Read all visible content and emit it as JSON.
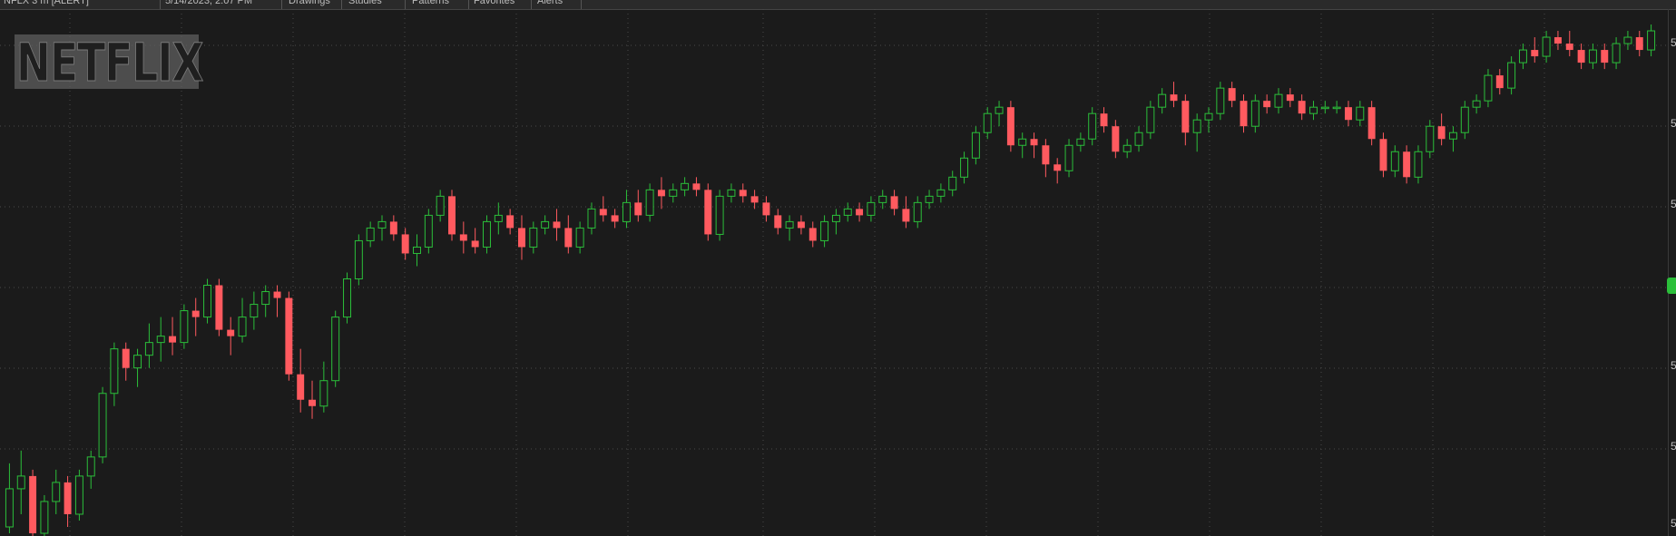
{
  "header": {
    "items": [
      {
        "label": "NFLX 3 m [ALERT]"
      },
      {
        "label": "5/14/2023, 2:07 PM"
      },
      {
        "label": "Drawings"
      },
      {
        "label": "Studies"
      },
      {
        "label": "Patterns"
      },
      {
        "label": "Favorites"
      },
      {
        "label": "Alerts"
      }
    ]
  },
  "logo": {
    "text": "NETFLIX"
  },
  "colors": {
    "background": "#1b1b1b",
    "up": "#2bbf3a",
    "down": "#ff5a5f",
    "grid": "#4a4a4a"
  },
  "chart_data": {
    "type": "candlestick",
    "title": "",
    "xlabel": "",
    "ylabel": "",
    "ylim": [
      1,
      9
    ],
    "y_tick_labels": [
      "5",
      "5",
      "5",
      "5",
      "5",
      "5"
    ],
    "grid": true,
    "x": [],
    "series": [
      {
        "ohlc": [
          [
            1.0,
            2.0,
            0.9,
            1.6
          ],
          [
            1.6,
            2.2,
            1.2,
            1.8
          ],
          [
            1.8,
            1.9,
            0.6,
            0.9
          ],
          [
            0.9,
            1.5,
            0.8,
            1.4
          ],
          [
            1.4,
            1.9,
            1.2,
            1.7
          ],
          [
            1.7,
            1.8,
            1.0,
            1.2
          ],
          [
            1.2,
            1.9,
            1.1,
            1.8
          ],
          [
            1.8,
            2.2,
            1.6,
            2.1
          ],
          [
            2.1,
            3.2,
            2.0,
            3.1
          ],
          [
            3.1,
            3.9,
            2.9,
            3.8
          ],
          [
            3.8,
            3.9,
            3.3,
            3.5
          ],
          [
            3.5,
            3.8,
            3.2,
            3.7
          ],
          [
            3.7,
            4.2,
            3.5,
            3.9
          ],
          [
            3.9,
            4.3,
            3.6,
            4.0
          ],
          [
            4.0,
            4.3,
            3.7,
            3.9
          ],
          [
            3.9,
            4.5,
            3.8,
            4.4
          ],
          [
            4.4,
            4.6,
            4.0,
            4.3
          ],
          [
            4.3,
            4.9,
            4.2,
            4.8
          ],
          [
            4.8,
            4.9,
            4.0,
            4.1
          ],
          [
            4.1,
            4.3,
            3.7,
            4.0
          ],
          [
            4.0,
            4.6,
            3.9,
            4.3
          ],
          [
            4.3,
            4.7,
            4.1,
            4.5
          ],
          [
            4.5,
            4.8,
            4.3,
            4.7
          ],
          [
            4.7,
            4.8,
            4.3,
            4.6
          ],
          [
            4.6,
            4.7,
            3.3,
            3.4
          ],
          [
            3.4,
            3.8,
            2.8,
            3.0
          ],
          [
            3.0,
            3.3,
            2.7,
            2.9
          ],
          [
            2.9,
            3.6,
            2.8,
            3.3
          ],
          [
            3.3,
            4.4,
            3.2,
            4.3
          ],
          [
            4.3,
            5.0,
            4.2,
            4.9
          ],
          [
            4.9,
            5.6,
            4.8,
            5.5
          ],
          [
            5.5,
            5.8,
            5.4,
            5.7
          ],
          [
            5.7,
            5.9,
            5.5,
            5.8
          ],
          [
            5.8,
            5.9,
            5.5,
            5.6
          ],
          [
            5.6,
            5.7,
            5.2,
            5.3
          ],
          [
            5.3,
            5.6,
            5.1,
            5.4
          ],
          [
            5.4,
            6.0,
            5.3,
            5.9
          ],
          [
            5.9,
            6.3,
            5.8,
            6.2
          ],
          [
            6.2,
            6.3,
            5.5,
            5.6
          ],
          [
            5.6,
            5.8,
            5.3,
            5.5
          ],
          [
            5.5,
            5.7,
            5.3,
            5.4
          ],
          [
            5.4,
            5.9,
            5.3,
            5.8
          ],
          [
            5.8,
            6.1,
            5.6,
            5.9
          ],
          [
            5.9,
            6.0,
            5.6,
            5.7
          ],
          [
            5.7,
            5.9,
            5.2,
            5.4
          ],
          [
            5.4,
            5.8,
            5.3,
            5.7
          ],
          [
            5.7,
            5.9,
            5.6,
            5.8
          ],
          [
            5.8,
            6.0,
            5.5,
            5.7
          ],
          [
            5.7,
            5.9,
            5.3,
            5.4
          ],
          [
            5.4,
            5.8,
            5.3,
            5.7
          ],
          [
            5.7,
            6.1,
            5.6,
            6.0
          ],
          [
            6.0,
            6.2,
            5.8,
            5.9
          ],
          [
            5.9,
            6.0,
            5.7,
            5.8
          ],
          [
            5.8,
            6.3,
            5.7,
            6.1
          ],
          [
            6.1,
            6.3,
            5.8,
            5.9
          ],
          [
            5.9,
            6.4,
            5.8,
            6.3
          ],
          [
            6.3,
            6.5,
            6.0,
            6.2
          ],
          [
            6.2,
            6.4,
            6.1,
            6.3
          ],
          [
            6.3,
            6.5,
            6.2,
            6.4
          ],
          [
            6.4,
            6.5,
            6.2,
            6.3
          ],
          [
            6.3,
            6.4,
            5.5,
            5.6
          ],
          [
            5.6,
            6.3,
            5.5,
            6.2
          ],
          [
            6.2,
            6.4,
            6.1,
            6.3
          ],
          [
            6.3,
            6.4,
            6.1,
            6.2
          ],
          [
            6.2,
            6.3,
            6.0,
            6.1
          ],
          [
            6.1,
            6.2,
            5.8,
            5.9
          ],
          [
            5.9,
            6.0,
            5.6,
            5.7
          ],
          [
            5.7,
            5.9,
            5.5,
            5.8
          ],
          [
            5.8,
            5.9,
            5.6,
            5.7
          ],
          [
            5.7,
            5.8,
            5.4,
            5.5
          ],
          [
            5.5,
            5.9,
            5.4,
            5.8
          ],
          [
            5.8,
            6.0,
            5.6,
            5.9
          ],
          [
            5.9,
            6.1,
            5.8,
            6.0
          ],
          [
            6.0,
            6.1,
            5.8,
            5.9
          ],
          [
            5.9,
            6.2,
            5.8,
            6.1
          ],
          [
            6.1,
            6.3,
            6.0,
            6.2
          ],
          [
            6.2,
            6.3,
            5.9,
            6.0
          ],
          [
            6.0,
            6.2,
            5.7,
            5.8
          ],
          [
            5.8,
            6.2,
            5.7,
            6.1
          ],
          [
            6.1,
            6.3,
            6.0,
            6.2
          ],
          [
            6.2,
            6.4,
            6.1,
            6.3
          ],
          [
            6.3,
            6.6,
            6.2,
            6.5
          ],
          [
            6.5,
            6.9,
            6.4,
            6.8
          ],
          [
            6.8,
            7.3,
            6.7,
            7.2
          ],
          [
            7.2,
            7.6,
            7.1,
            7.5
          ],
          [
            7.5,
            7.7,
            7.3,
            7.6
          ],
          [
            7.6,
            7.7,
            6.9,
            7.0
          ],
          [
            7.0,
            7.2,
            6.8,
            7.1
          ],
          [
            7.1,
            7.2,
            6.8,
            7.0
          ],
          [
            7.0,
            7.1,
            6.5,
            6.7
          ],
          [
            6.7,
            6.8,
            6.4,
            6.6
          ],
          [
            6.6,
            7.1,
            6.5,
            7.0
          ],
          [
            7.0,
            7.2,
            6.9,
            7.1
          ],
          [
            7.1,
            7.6,
            7.0,
            7.5
          ],
          [
            7.5,
            7.6,
            7.2,
            7.3
          ],
          [
            7.3,
            7.4,
            6.8,
            6.9
          ],
          [
            6.9,
            7.1,
            6.8,
            7.0
          ],
          [
            7.0,
            7.3,
            6.9,
            7.2
          ],
          [
            7.2,
            7.7,
            7.1,
            7.6
          ],
          [
            7.6,
            7.9,
            7.5,
            7.8
          ],
          [
            7.8,
            8.0,
            7.6,
            7.7
          ],
          [
            7.7,
            7.8,
            7.0,
            7.2
          ],
          [
            7.2,
            7.5,
            6.9,
            7.4
          ],
          [
            7.4,
            7.6,
            7.2,
            7.5
          ],
          [
            7.5,
            8.0,
            7.4,
            7.9
          ],
          [
            7.9,
            8.0,
            7.6,
            7.7
          ],
          [
            7.7,
            7.8,
            7.2,
            7.3
          ],
          [
            7.3,
            7.8,
            7.2,
            7.7
          ],
          [
            7.7,
            7.8,
            7.5,
            7.6
          ],
          [
            7.6,
            7.9,
            7.5,
            7.8
          ],
          [
            7.8,
            7.9,
            7.6,
            7.7
          ],
          [
            7.7,
            7.8,
            7.4,
            7.5
          ],
          [
            7.5,
            7.7,
            7.4,
            7.6
          ],
          [
            7.6,
            7.7,
            7.5,
            7.6
          ],
          [
            7.6,
            7.7,
            7.5,
            7.6
          ],
          [
            7.6,
            7.7,
            7.3,
            7.4
          ],
          [
            7.4,
            7.7,
            7.3,
            7.6
          ],
          [
            7.6,
            7.7,
            7.0,
            7.1
          ],
          [
            7.1,
            7.2,
            6.5,
            6.6
          ],
          [
            6.6,
            7.0,
            6.5,
            6.9
          ],
          [
            6.9,
            7.0,
            6.4,
            6.5
          ],
          [
            6.5,
            7.0,
            6.4,
            6.9
          ],
          [
            6.9,
            7.4,
            6.8,
            7.3
          ],
          [
            7.3,
            7.5,
            7.0,
            7.1
          ],
          [
            7.1,
            7.3,
            6.9,
            7.2
          ],
          [
            7.2,
            7.7,
            7.1,
            7.6
          ],
          [
            7.6,
            7.8,
            7.5,
            7.7
          ],
          [
            7.7,
            8.2,
            7.6,
            8.1
          ],
          [
            8.1,
            8.2,
            7.8,
            7.9
          ],
          [
            7.9,
            8.4,
            7.8,
            8.3
          ],
          [
            8.3,
            8.6,
            8.2,
            8.5
          ],
          [
            8.5,
            8.7,
            8.3,
            8.4
          ],
          [
            8.4,
            8.8,
            8.3,
            8.7
          ],
          [
            8.7,
            8.8,
            8.5,
            8.6
          ],
          [
            8.6,
            8.8,
            8.4,
            8.5
          ],
          [
            8.5,
            8.6,
            8.2,
            8.3
          ],
          [
            8.3,
            8.6,
            8.2,
            8.5
          ],
          [
            8.5,
            8.6,
            8.2,
            8.3
          ],
          [
            8.3,
            8.7,
            8.2,
            8.6
          ],
          [
            8.6,
            8.8,
            8.5,
            8.7
          ],
          [
            8.7,
            8.8,
            8.4,
            8.5
          ],
          [
            8.5,
            8.9,
            8.4,
            8.8
          ]
        ]
      }
    ]
  }
}
